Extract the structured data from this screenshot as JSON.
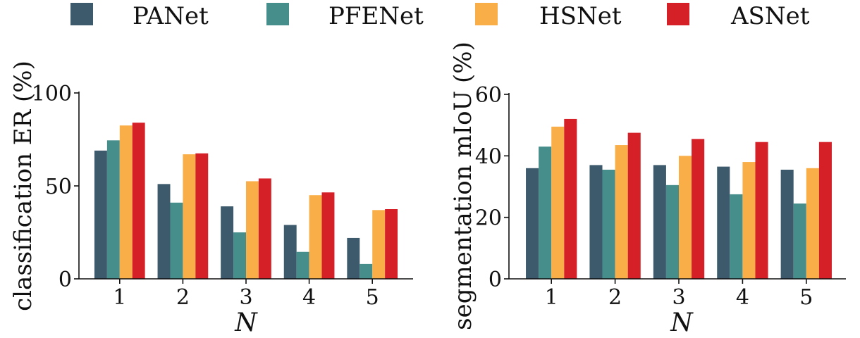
{
  "legend": [
    "PANet",
    "PFENet",
    "HSNet",
    "ASNet"
  ],
  "colors": {
    "PANet": "#3d5a6c",
    "PFENet": "#468e8b",
    "HSNet": "#f9ae48",
    "ASNet": "#d62027"
  },
  "chart_data": [
    {
      "type": "bar",
      "categories": [
        "1",
        "2",
        "3",
        "4",
        "5"
      ],
      "series": [
        {
          "name": "PANet",
          "values": [
            69,
            51,
            39,
            29,
            22
          ]
        },
        {
          "name": "PFENet",
          "values": [
            74.5,
            41,
            25,
            14.5,
            8
          ]
        },
        {
          "name": "HSNet",
          "values": [
            82.5,
            67,
            52.5,
            45,
            37
          ]
        },
        {
          "name": "ASNet",
          "values": [
            84,
            67.5,
            54,
            46.5,
            37.5
          ]
        }
      ],
      "xlabel": "N",
      "ylabel": "classification ER (%)",
      "ylim": [
        0,
        100
      ],
      "yticks": [
        0,
        50,
        100
      ],
      "grid": false
    },
    {
      "type": "bar",
      "categories": [
        "1",
        "2",
        "3",
        "4",
        "5"
      ],
      "series": [
        {
          "name": "PANet",
          "values": [
            36,
            37,
            37,
            36.5,
            35.5
          ]
        },
        {
          "name": "PFENet",
          "values": [
            43,
            35.5,
            30.5,
            27.5,
            24.5
          ]
        },
        {
          "name": "HSNet",
          "values": [
            49.5,
            43.5,
            40,
            38,
            36
          ]
        },
        {
          "name": "ASNet",
          "values": [
            52,
            47.5,
            45.5,
            44.5,
            44.5
          ]
        }
      ],
      "xlabel": "N",
      "ylabel": "segmentation mIoU (%)",
      "ylim": [
        0,
        60
      ],
      "yticks": [
        0,
        20,
        40,
        60
      ],
      "grid": false
    }
  ]
}
